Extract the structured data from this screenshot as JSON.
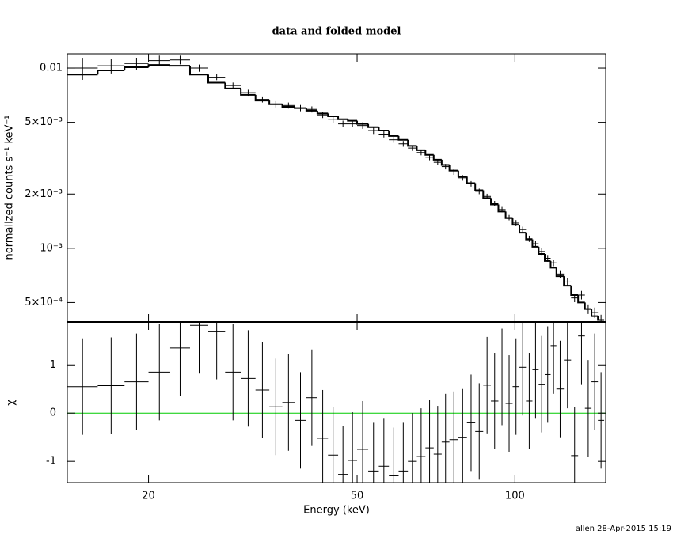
{
  "chart_data": [
    {
      "type": "step",
      "title": "data and folded model",
      "ylabel": "normalized counts s⁻¹ keV⁻¹",
      "log_x": true,
      "log_y": true,
      "color": "#000000",
      "xlim": [
        14,
        149
      ],
      "ylim": [
        0.00039,
        0.012
      ],
      "yticks": [
        0.01,
        {
          "value": 0.005,
          "label": "5×10⁻³"
        },
        {
          "value": 0.002,
          "label": "2×10⁻³"
        },
        {
          "value": 0.001,
          "label": "10⁻³"
        },
        {
          "value": 0.0005,
          "label": "5×10⁻⁴"
        }
      ],
      "bins": [
        14,
        16,
        18,
        20,
        22,
        24,
        26,
        28,
        30,
        32,
        34,
        36,
        38,
        40,
        42,
        44,
        46,
        48,
        50,
        52.5,
        55,
        57.5,
        60,
        62.5,
        65,
        67.5,
        70,
        72.5,
        75,
        78,
        81,
        84,
        87,
        90,
        93,
        96,
        99,
        102,
        105,
        108,
        111,
        114,
        117,
        120,
        124,
        128,
        132,
        136,
        140,
        144,
        148
      ],
      "data": [
        0.01,
        0.0103,
        0.0106,
        0.011,
        0.0111,
        0.01,
        0.0089,
        0.008,
        0.0073,
        0.0067,
        0.0063,
        0.0062,
        0.006,
        0.0059,
        0.0055,
        0.0052,
        0.0049,
        0.0049,
        0.0048,
        0.0045,
        0.0043,
        0.004,
        0.0038,
        0.0036,
        0.0034,
        0.0032,
        0.003,
        0.00284,
        0.00265,
        0.00246,
        0.00228,
        0.00207,
        0.00194,
        0.00177,
        0.00164,
        0.00148,
        0.00138,
        0.00127,
        0.00113,
        0.00106,
        0.00096,
        0.00088,
        0.00083,
        0.00072,
        0.00065,
        0.00053,
        0.00055,
        0.00046,
        0.00044,
        0.0004
      ],
      "data_errors": [
        0.0014,
        0.00097,
        0.00081,
        0.00073,
        0.00062,
        0.00046,
        0.00033,
        0.00031,
        0.00028,
        0.00026,
        0.00025,
        0.00024,
        0.00024,
        0.00023,
        0.00022,
        0.00022,
        0.00021,
        0.0002,
        0.0002,
        0.00019,
        0.00018,
        0.00015,
        0.00014,
        0.00013,
        0.00012,
        0.00012,
        0.00011,
        0.0001,
        9.5e-05,
        8.8e-05,
        8e-05,
        7.4e-05,
        6.7e-05,
        6.1e-05,
        5.6e-05,
        5.1e-05,
        5.4e-05,
        4.9e-05,
        4.5e-05,
        4.1e-05,
        4.2e-05,
        3.8e-05,
        3.5e-05,
        3.5e-05,
        3.1e-05,
        2.8e-05,
        3e-05,
        2.8e-05,
        2.9e-05,
        2.8e-05
      ],
      "model": [
        0.0092,
        0.0097,
        0.0101,
        0.0104,
        0.0103,
        0.0092,
        0.0083,
        0.0077,
        0.0071,
        0.0066,
        0.0063,
        0.0061,
        0.006,
        0.0058,
        0.0056,
        0.0054,
        0.0052,
        0.0051,
        0.0049,
        0.0047,
        0.0045,
        0.0042,
        0.004,
        0.0037,
        0.0035,
        0.0033,
        0.0031,
        0.0029,
        0.0027,
        0.0025,
        0.0023,
        0.0021,
        0.0019,
        0.00175,
        0.0016,
        0.00147,
        0.00135,
        0.00122,
        0.00112,
        0.00102,
        0.00093,
        0.00085,
        0.00078,
        0.0007,
        0.00062,
        0.00055,
        0.0005,
        0.00046,
        0.00042,
        0.0004
      ]
    },
    {
      "type": "residual",
      "ylabel": "χ",
      "xlabel": "Energy (keV)",
      "log_x": true,
      "color": "#000000",
      "xlim": [
        14,
        149
      ],
      "xticks": [
        20,
        50,
        100
      ],
      "ylim": [
        -1.44,
        1.89
      ],
      "yticks": [
        -1,
        0,
        1
      ],
      "values": [
        0.55,
        0.57,
        0.65,
        0.85,
        1.35,
        1.82,
        1.7,
        0.85,
        0.72,
        0.48,
        0.13,
        0.22,
        -0.15,
        0.32,
        -0.52,
        -0.87,
        -1.27,
        -0.98,
        -0.75,
        -1.2,
        -1.1,
        -1.3,
        -1.2,
        -1.0,
        -0.9,
        -0.72,
        -0.85,
        -0.6,
        -0.55,
        -0.5,
        -0.2,
        -0.38,
        0.58,
        0.25,
        0.75,
        0.2,
        0.55,
        0.95,
        0.25,
        0.9,
        0.6,
        0.8,
        1.4,
        0.5,
        1.1,
        -0.88,
        1.6,
        0.1,
        0.65,
        -0.15
      ],
      "error": 1,
      "reference": 0,
      "reference_color": "#00cc00"
    }
  ],
  "footer": "allen 28-Apr-2015 15:19"
}
